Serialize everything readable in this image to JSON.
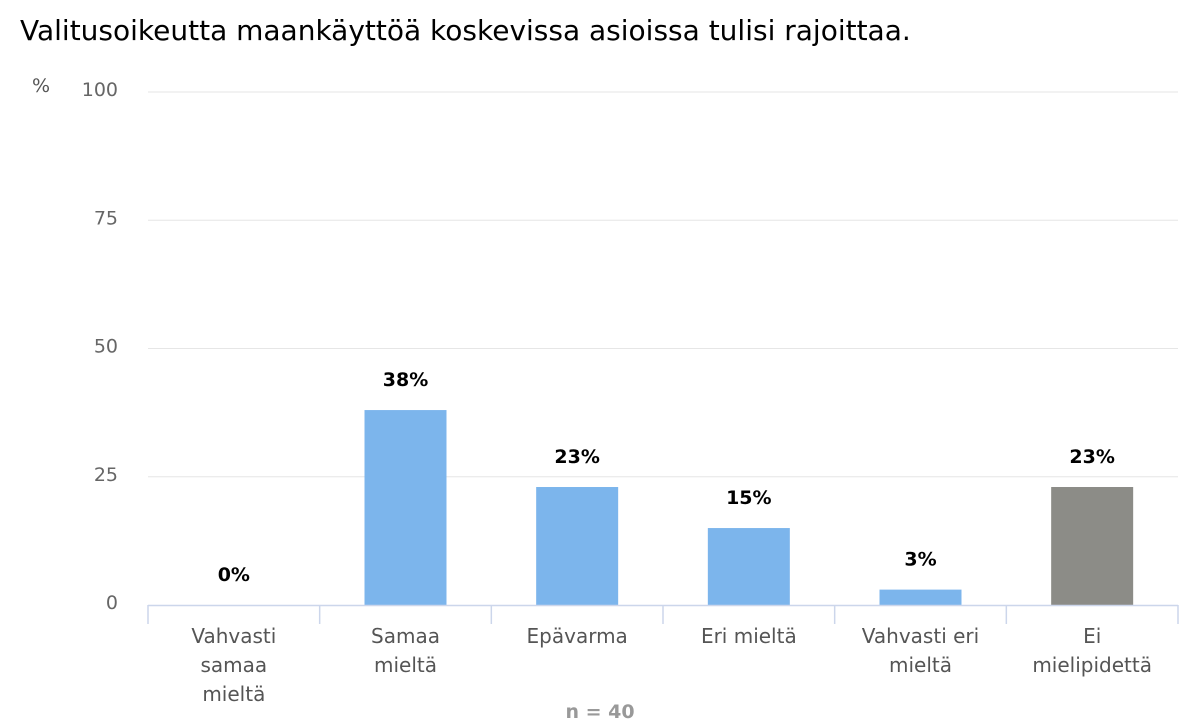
{
  "chart_data": {
    "type": "bar",
    "title": "Valitusoikeutta maankäyttöä koskevissa asioissa tulisi rajoittaa.",
    "ylabel": "%",
    "xlabel": "",
    "ylim": [
      0,
      100
    ],
    "yticks": [
      0,
      25,
      50,
      75,
      100
    ],
    "grid": true,
    "categories": [
      [
        "Vahvasti",
        "samaa",
        "mieltä"
      ],
      [
        "Samaa",
        "mieltä"
      ],
      [
        "Epävarma"
      ],
      [
        "Eri mieltä"
      ],
      [
        "Vahvasti eri",
        "mieltä"
      ],
      [
        "Ei",
        "mielipidettä"
      ]
    ],
    "values": [
      0,
      38,
      23,
      15,
      3,
      23
    ],
    "data_labels": [
      "0%",
      "38%",
      "23%",
      "15%",
      "3%",
      "23%"
    ],
    "colors": [
      "#7cb5ec",
      "#7cb5ec",
      "#7cb5ec",
      "#7cb5ec",
      "#7cb5ec",
      "#8c8c87"
    ],
    "note": "n = 40"
  }
}
